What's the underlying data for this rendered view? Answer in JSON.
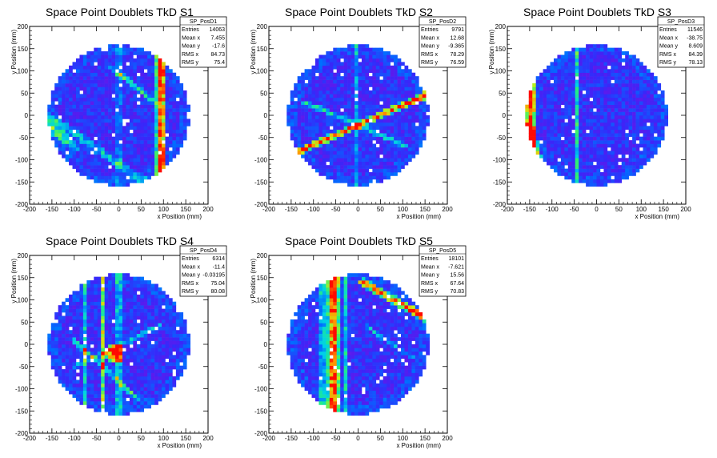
{
  "chart_data": [
    {
      "type": "heatmap",
      "title": "Space Point Doublets TkD S1",
      "xlabel": "x Position (mm)",
      "ylabel": "y Position (mm)",
      "xlim": [
        -200,
        200
      ],
      "ylim": [
        -200,
        200
      ],
      "xticks": [
        "-200",
        "-150",
        "-100",
        "-50",
        "0",
        "50",
        "100",
        "150",
        "200"
      ],
      "yticks": [
        "-200",
        "-150",
        "-100",
        "-50",
        "0",
        "50",
        "100",
        "150",
        "200"
      ],
      "colormap": "rainbow",
      "detector_radius": 160,
      "features": [
        {
          "kind": "vline",
          "x": 95,
          "w": 9,
          "i": 1.0
        },
        {
          "kind": "vline",
          "x": 85,
          "w": 6,
          "i": 0.45
        },
        {
          "kind": "vline",
          "x": 0,
          "w": 5,
          "i": 0.3
        },
        {
          "kind": "line",
          "x1": -20,
          "y1": 110,
          "x2": 80,
          "y2": 30,
          "w": 6,
          "i": 0.45
        },
        {
          "kind": "line",
          "x1": -160,
          "y1": 0,
          "x2": 60,
          "y2": -150,
          "w": 10,
          "i": 0.35
        },
        {
          "kind": "line",
          "x1": -160,
          "y1": -20,
          "x2": -100,
          "y2": -70,
          "w": 12,
          "i": 0.45
        }
      ],
      "stats": {
        "name": "SP_PosD1",
        "rows": [
          [
            "Entries",
            "14063"
          ],
          [
            "Mean x",
            "7.455"
          ],
          [
            "Mean y",
            "-17.6"
          ],
          [
            "RMS x",
            "84.73"
          ],
          [
            "RMS y",
            "75.4"
          ]
        ]
      }
    },
    {
      "type": "heatmap",
      "title": "Space Point Doublets TkD S2",
      "xlabel": "x Position (mm)",
      "ylabel": "y Position (mm)",
      "xlim": [
        -200,
        200
      ],
      "ylim": [
        -200,
        200
      ],
      "xticks": [
        "-200",
        "-150",
        "-100",
        "-50",
        "0",
        "50",
        "100",
        "150",
        "200"
      ],
      "yticks": [
        "-200",
        "-150",
        "-100",
        "-50",
        "0",
        "50",
        "100",
        "150",
        "200"
      ],
      "colormap": "rainbow",
      "detector_radius": 160,
      "features": [
        {
          "kind": "line",
          "x1": -130,
          "y1": -80,
          "x2": 160,
          "y2": 50,
          "w": 8,
          "i": 0.9
        },
        {
          "kind": "line",
          "x1": -120,
          "y1": 30,
          "x2": 110,
          "y2": -70,
          "w": 6,
          "i": 0.45
        },
        {
          "kind": "vline",
          "x": -5,
          "w": 5,
          "i": 0.3
        }
      ],
      "stats": {
        "name": "SP_PosD2",
        "rows": [
          [
            "Entries",
            "9791"
          ],
          [
            "Mean x",
            "12.68"
          ],
          [
            "Mean y",
            "-9.365"
          ],
          [
            "RMS x",
            "78.29"
          ],
          [
            "RMS y",
            "76.59"
          ]
        ]
      }
    },
    {
      "type": "heatmap",
      "title": "Space Point Doublets TkD S3",
      "xlabel": "x Position (mm)",
      "ylabel": "y Position (mm)",
      "xlim": [
        -200,
        200
      ],
      "ylim": [
        -200,
        200
      ],
      "xticks": [
        "-200",
        "-150",
        "-100",
        "-50",
        "0",
        "50",
        "100",
        "150",
        "200"
      ],
      "yticks": [
        "-200",
        "-150",
        "-100",
        "-50",
        "0",
        "50",
        "100",
        "150",
        "200"
      ],
      "colormap": "rainbow",
      "detector_radius": 160,
      "features": [
        {
          "kind": "edge",
          "x": -148,
          "w": 14,
          "i": 0.75
        },
        {
          "kind": "vline",
          "x": -45,
          "w": 5,
          "i": 0.45
        },
        {
          "kind": "line",
          "x1": -150,
          "y1": -20,
          "x2": -130,
          "y2": -100,
          "w": 8,
          "i": 0.6
        }
      ],
      "stats": {
        "name": "SP_PosD3",
        "rows": [
          [
            "Entries",
            "11546"
          ],
          [
            "Mean x",
            "-38.75"
          ],
          [
            "Mean y",
            "8.609"
          ],
          [
            "RMS x",
            "84.39"
          ],
          [
            "RMS y",
            "78.13"
          ]
        ]
      }
    },
    {
      "type": "heatmap",
      "title": "Space Point Doublets TkD S4",
      "xlabel": "x Position (mm)",
      "ylabel": "y Position (mm)",
      "xlim": [
        -200,
        200
      ],
      "ylim": [
        -200,
        200
      ],
      "xticks": [
        "-200",
        "-150",
        "-100",
        "-50",
        "0",
        "50",
        "100",
        "150",
        "200"
      ],
      "yticks": [
        "-200",
        "-150",
        "-100",
        "-50",
        "0",
        "50",
        "100",
        "150",
        "200"
      ],
      "colormap": "rainbow",
      "detector_radius": 160,
      "features": [
        {
          "kind": "vline",
          "x": -35,
          "w": 7,
          "i": 0.6
        },
        {
          "kind": "vline",
          "x": 0,
          "w": 6,
          "i": 0.5
        },
        {
          "kind": "vline",
          "x": -75,
          "w": 6,
          "i": 0.4
        },
        {
          "kind": "line",
          "x1": -100,
          "y1": 10,
          "x2": 40,
          "y2": -120,
          "w": 6,
          "i": 0.45
        },
        {
          "kind": "line",
          "x1": -100,
          "y1": -50,
          "x2": 90,
          "y2": 40,
          "w": 6,
          "i": 0.4
        },
        {
          "kind": "blob",
          "x": -10,
          "y": -20,
          "r": 22,
          "i": 0.95
        }
      ],
      "stats": {
        "name": "SP_PosD4",
        "rows": [
          [
            "Entries",
            "6314"
          ],
          [
            "Mean x",
            "-11.4"
          ],
          [
            "Mean y",
            "-0.03195"
          ],
          [
            "RMS x",
            "75.04"
          ],
          [
            "RMS y",
            "80.08"
          ]
        ]
      }
    },
    {
      "type": "heatmap",
      "title": "Space Point Doublets TkD S5",
      "xlabel": "x Position (mm)",
      "ylabel": "y Position (mm)",
      "xlim": [
        -200,
        200
      ],
      "ylim": [
        -200,
        200
      ],
      "xticks": [
        "-200",
        "-150",
        "-100",
        "-50",
        "0",
        "50",
        "100",
        "150",
        "200"
      ],
      "yticks": [
        "-200",
        "-150",
        "-100",
        "-50",
        "0",
        "50",
        "100",
        "150",
        "200"
      ],
      "colormap": "rainbow",
      "detector_radius": 160,
      "features": [
        {
          "kind": "vline",
          "x": -55,
          "w": 14,
          "i": 0.9
        },
        {
          "kind": "vline",
          "x": -80,
          "w": 7,
          "i": 0.45
        },
        {
          "kind": "vline",
          "x": -30,
          "w": 6,
          "i": 0.45
        },
        {
          "kind": "line",
          "x1": 10,
          "y1": 140,
          "x2": 150,
          "y2": 60,
          "w": 9,
          "i": 0.85
        },
        {
          "kind": "line",
          "x1": 20,
          "y1": 40,
          "x2": 120,
          "y2": -30,
          "w": 5,
          "i": 0.35
        }
      ],
      "stats": {
        "name": "SP_PosD5",
        "rows": [
          [
            "Entries",
            "18101"
          ],
          [
            "Mean x",
            "-7.621"
          ],
          [
            "Mean y",
            "15.56"
          ],
          [
            "RMS x",
            "67.64"
          ],
          [
            "RMS y",
            "70.83"
          ]
        ]
      }
    }
  ]
}
